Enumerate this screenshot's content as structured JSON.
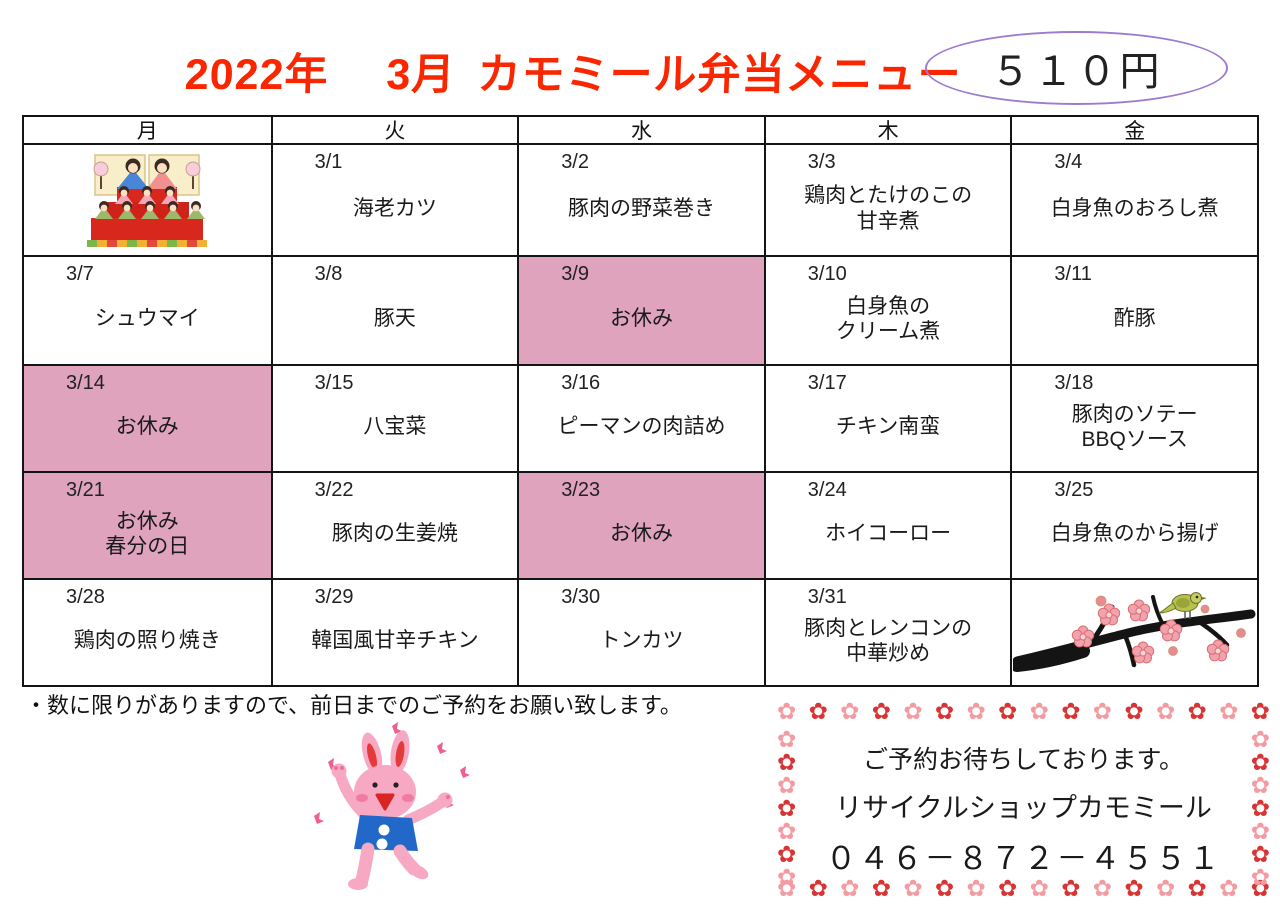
{
  "title": {
    "year": "2022年",
    "month": "3月",
    "name": "カモミール弁当メニュー"
  },
  "price_badge": "５１０円",
  "calendar": {
    "day_headers": [
      "月",
      "火",
      "水",
      "木",
      "金"
    ],
    "rows": [
      {
        "cells": [
          {
            "illustration": "hina-dolls"
          },
          {
            "date": "3/1",
            "menu": "海老カツ"
          },
          {
            "date": "3/2",
            "menu": "豚肉の野菜巻き"
          },
          {
            "date": "3/3",
            "menu": "鶏肉とたけのこの\n甘辛煮"
          },
          {
            "date": "3/4",
            "menu": "白身魚のおろし煮"
          }
        ]
      },
      {
        "cells": [
          {
            "date": "3/7",
            "menu": "シュウマイ"
          },
          {
            "date": "3/8",
            "menu": "豚天"
          },
          {
            "date": "3/9",
            "menu": "お休み",
            "closed": true
          },
          {
            "date": "3/10",
            "menu": "白身魚の\nクリーム煮"
          },
          {
            "date": "3/11",
            "menu": "酢豚"
          }
        ]
      },
      {
        "cells": [
          {
            "date": "3/14",
            "menu": "お休み",
            "closed": true
          },
          {
            "date": "3/15",
            "menu": "八宝菜"
          },
          {
            "date": "3/16",
            "menu": "ピーマンの肉詰め"
          },
          {
            "date": "3/17",
            "menu": "チキン南蛮"
          },
          {
            "date": "3/18",
            "menu": "豚肉のソテー\nBBQソース"
          }
        ]
      },
      {
        "cells": [
          {
            "date": "3/21",
            "menu": "お休み\n春分の日",
            "closed": true
          },
          {
            "date": "3/22",
            "menu": "豚肉の生姜焼"
          },
          {
            "date": "3/23",
            "menu": "お休み",
            "closed": true
          },
          {
            "date": "3/24",
            "menu": "ホイコーロー"
          },
          {
            "date": "3/25",
            "menu": "白身魚のから揚げ"
          }
        ]
      },
      {
        "cells": [
          {
            "date": "3/28",
            "menu": "鶏肉の照り焼き"
          },
          {
            "date": "3/29",
            "menu": "韓国風甘辛チキン"
          },
          {
            "date": "3/30",
            "menu": "トンカツ"
          },
          {
            "date": "3/31",
            "menu": "豚肉とレンコンの\n中華炒め"
          },
          {
            "illustration": "plum-branch"
          }
        ]
      }
    ]
  },
  "note": "・数に限りがありますので、前日までのご予約をお願い致します。",
  "contact": {
    "line1": "ご予約お待ちしております。",
    "shop_name": "リサイクルショップカモミール",
    "phone": "０４６－８７２－４５５１"
  },
  "colors": {
    "title_red": "#fa2600",
    "closed_pink": "#dfa3be",
    "price_border_purple": "#9d7bd0",
    "flower_red": "#d93434",
    "flower_pink": "#f49ba1"
  }
}
